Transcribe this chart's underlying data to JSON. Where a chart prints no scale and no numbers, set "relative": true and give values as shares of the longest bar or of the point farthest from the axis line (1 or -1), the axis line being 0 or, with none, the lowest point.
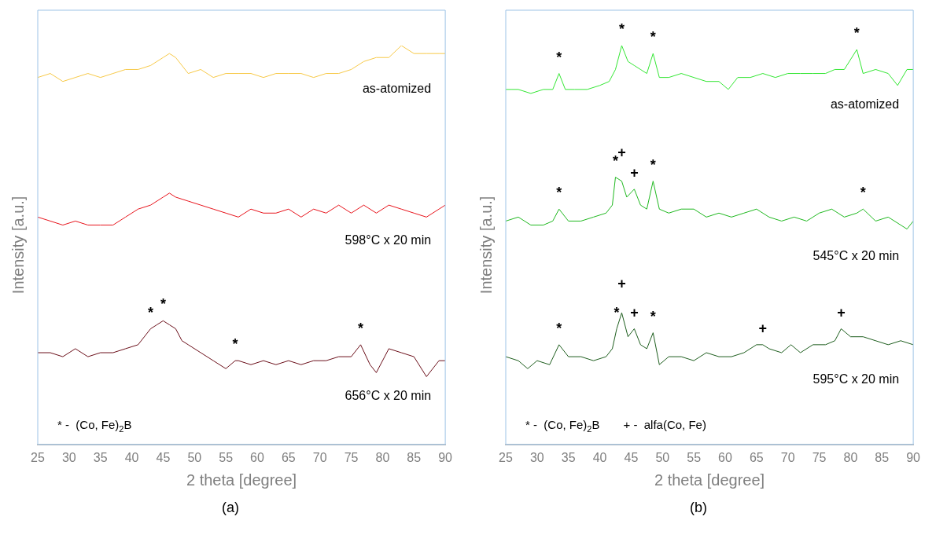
{
  "chart_data": [
    {
      "type": "line",
      "xlabel": "2 theta [degree]",
      "ylabel": "Intensity [a.u.]",
      "relative": true,
      "grid": false,
      "legend": false,
      "marker": "none",
      "line_style": "solid",
      "xlim": [
        25,
        90
      ],
      "xticks": [
        25,
        30,
        35,
        40,
        45,
        50,
        55,
        60,
        65,
        70,
        75,
        80,
        85,
        90
      ],
      "series": [
        {
          "name": "as-atomized",
          "color": "#f7c948",
          "x": [
            25,
            27,
            29,
            31,
            33,
            35,
            37,
            39,
            41,
            43,
            45,
            46,
            47,
            49,
            51,
            53,
            55,
            57,
            59,
            61,
            63,
            65,
            67,
            69,
            71,
            73,
            75,
            77,
            79,
            81,
            83,
            85,
            87,
            89,
            90
          ],
          "values": [
            0.92,
            0.93,
            0.91,
            0.92,
            0.93,
            0.92,
            0.93,
            0.94,
            0.94,
            0.95,
            0.97,
            0.98,
            0.97,
            0.93,
            0.94,
            0.92,
            0.93,
            0.93,
            0.93,
            0.92,
            0.93,
            0.93,
            0.93,
            0.92,
            0.93,
            0.93,
            0.94,
            0.96,
            0.97,
            0.97,
            1.0,
            0.98,
            0.98,
            0.98,
            0.98
          ]
        },
        {
          "name": "598°C x 20 min",
          "color": "#e8141c",
          "x": [
            25,
            27,
            29,
            31,
            33,
            35,
            37,
            39,
            41,
            43,
            45,
            46,
            47,
            49,
            51,
            53,
            55,
            57,
            59,
            61,
            63,
            65,
            67,
            69,
            71,
            73,
            75,
            77,
            79,
            81,
            83,
            85,
            87,
            89,
            90
          ],
          "values": [
            0.57,
            0.56,
            0.55,
            0.56,
            0.55,
            0.55,
            0.55,
            0.57,
            0.59,
            0.6,
            0.62,
            0.63,
            0.62,
            0.61,
            0.6,
            0.59,
            0.58,
            0.57,
            0.59,
            0.58,
            0.58,
            0.59,
            0.57,
            0.59,
            0.58,
            0.6,
            0.58,
            0.6,
            0.58,
            0.6,
            0.59,
            0.58,
            0.57,
            0.59,
            0.6
          ]
        },
        {
          "name": "656°C x 20 min",
          "color": "#6b0f1a",
          "x": [
            25,
            27,
            29,
            31,
            33,
            35,
            37,
            39,
            41,
            43,
            44,
            45,
            46,
            47,
            48,
            49,
            51,
            53,
            55,
            56.5,
            57,
            59,
            61,
            63,
            65,
            67,
            69,
            71,
            73,
            75,
            76.5,
            78,
            79,
            81,
            83,
            85,
            87,
            89,
            90
          ],
          "values": [
            0.23,
            0.23,
            0.22,
            0.24,
            0.22,
            0.23,
            0.23,
            0.24,
            0.25,
            0.29,
            0.3,
            0.31,
            0.3,
            0.29,
            0.26,
            0.25,
            0.23,
            0.21,
            0.19,
            0.21,
            0.21,
            0.2,
            0.21,
            0.2,
            0.21,
            0.2,
            0.21,
            0.21,
            0.22,
            0.22,
            0.25,
            0.2,
            0.18,
            0.24,
            0.23,
            0.22,
            0.17,
            0.21,
            0.21
          ]
        }
      ],
      "annotations": [
        {
          "text": "*",
          "x": 43,
          "y": 0.29
        },
        {
          "text": "*",
          "x": 45,
          "y": 0.31
        },
        {
          "text": "*",
          "x": 56.5,
          "y": 0.21
        },
        {
          "text": "*",
          "x": 76.5,
          "y": 0.25
        },
        "* -  (Co, Fe)$_{2}$B",
        "(a)"
      ]
    },
    {
      "type": "line",
      "xlabel": "2 theta [degree]",
      "ylabel": "Intensity [a.u.]",
      "relative": true,
      "grid": false,
      "legend": false,
      "marker": "none",
      "line_style": "solid",
      "xlim": [
        25,
        90
      ],
      "xticks": [
        25,
        30,
        35,
        40,
        45,
        50,
        55,
        60,
        65,
        70,
        75,
        80,
        85,
        90
      ],
      "series": [
        {
          "name": "as-atomized",
          "color": "#33e633",
          "x": [
            25,
            26,
            27,
            29,
            31,
            32.5,
            33.5,
            34.5,
            36,
            38,
            40,
            41.5,
            42.5,
            43.5,
            44.5,
            45.5,
            46.5,
            47.5,
            48.5,
            49.5,
            51,
            53,
            55,
            57,
            59,
            60.5,
            62,
            64,
            66,
            68,
            70,
            72,
            74,
            76,
            77.5,
            79,
            81,
            82,
            84,
            86,
            87.5,
            89,
            90
          ],
          "values": [
            0.89,
            0.89,
            0.89,
            0.88,
            0.89,
            0.89,
            0.93,
            0.89,
            0.89,
            0.89,
            0.9,
            0.91,
            0.94,
            1.0,
            0.96,
            0.95,
            0.94,
            0.93,
            0.98,
            0.92,
            0.92,
            0.93,
            0.92,
            0.91,
            0.91,
            0.89,
            0.92,
            0.92,
            0.93,
            0.92,
            0.93,
            0.93,
            0.93,
            0.93,
            0.94,
            0.94,
            0.99,
            0.93,
            0.94,
            0.93,
            0.9,
            0.94,
            0.94
          ]
        },
        {
          "name": "545°C x 20 min",
          "color": "#1fb81f",
          "x": [
            25,
            27,
            29,
            31,
            32.5,
            33.5,
            35,
            37,
            39,
            41,
            42,
            42.5,
            43.5,
            44.3,
            45.5,
            46.5,
            47.5,
            48.5,
            49.5,
            51,
            53,
            55,
            57,
            59,
            61,
            63,
            65,
            67,
            69,
            71,
            73,
            75,
            77,
            79,
            81,
            82,
            84,
            86,
            88,
            89,
            90
          ],
          "values": [
            0.56,
            0.57,
            0.55,
            0.55,
            0.56,
            0.59,
            0.56,
            0.56,
            0.57,
            0.58,
            0.6,
            0.67,
            0.66,
            0.62,
            0.64,
            0.6,
            0.59,
            0.66,
            0.59,
            0.58,
            0.59,
            0.59,
            0.57,
            0.58,
            0.57,
            0.58,
            0.59,
            0.57,
            0.56,
            0.57,
            0.56,
            0.58,
            0.59,
            0.57,
            0.58,
            0.59,
            0.56,
            0.57,
            0.55,
            0.54,
            0.56
          ]
        },
        {
          "name": "595°C x 20 min",
          "color": "#1e5e1e",
          "x": [
            25,
            27,
            28.5,
            30,
            32,
            33.5,
            35,
            37,
            39,
            41,
            42,
            42.7,
            43.5,
            44.5,
            45.5,
            46.5,
            47.5,
            48.5,
            49.5,
            51,
            53,
            55,
            57,
            59,
            61,
            63,
            65,
            66,
            67,
            69,
            70.5,
            72,
            74,
            76,
            77.5,
            78.5,
            80,
            82,
            84,
            86,
            88,
            90
          ],
          "values": [
            0.22,
            0.21,
            0.19,
            0.21,
            0.2,
            0.25,
            0.22,
            0.22,
            0.21,
            0.22,
            0.24,
            0.29,
            0.33,
            0.27,
            0.29,
            0.25,
            0.24,
            0.28,
            0.2,
            0.22,
            0.22,
            0.21,
            0.23,
            0.22,
            0.22,
            0.23,
            0.25,
            0.25,
            0.24,
            0.23,
            0.25,
            0.23,
            0.25,
            0.25,
            0.26,
            0.29,
            0.27,
            0.27,
            0.26,
            0.25,
            0.26,
            0.25
          ]
        }
      ],
      "annotations": [
        {
          "text": "*",
          "x": 33.5,
          "y": 0.93
        },
        {
          "text": "*",
          "x": 43.5,
          "y": 1.0
        },
        {
          "text": "*",
          "x": 48.5,
          "y": 0.98
        },
        {
          "text": "*",
          "x": 81,
          "y": 0.99
        },
        {
          "text": "*",
          "x": 33.5,
          "y": 0.59
        },
        {
          "text": "*",
          "x": 42.5,
          "y": 0.67
        },
        {
          "text": "+",
          "x": 43.5,
          "y": 0.66
        },
        {
          "text": "+",
          "x": 45.5,
          "y": 0.64
        },
        {
          "text": "*",
          "x": 48.5,
          "y": 0.66
        },
        {
          "text": "*",
          "x": 82,
          "y": 0.59
        },
        {
          "text": "*",
          "x": 33.5,
          "y": 0.25
        },
        {
          "text": "*",
          "x": 42.7,
          "y": 0.29
        },
        {
          "text": "+",
          "x": 43.5,
          "y": 0.33
        },
        {
          "text": "+",
          "x": 45.5,
          "y": 0.29
        },
        {
          "text": "*",
          "x": 48.5,
          "y": 0.28
        },
        {
          "text": "+",
          "x": 66,
          "y": 0.25
        },
        {
          "text": "+",
          "x": 78.5,
          "y": 0.29
        },
        "* -  (Co, Fe)$_{2}$B",
        "+ -  alfa(Co, Fe)",
        "(b)"
      ]
    }
  ]
}
